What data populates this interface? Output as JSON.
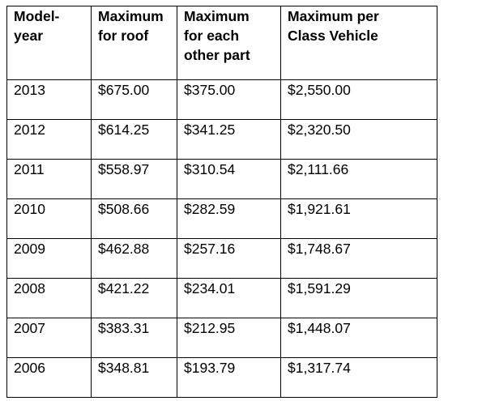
{
  "table": {
    "headers": [
      [
        "Model-",
        "year"
      ],
      [
        "Maximum",
        "for roof"
      ],
      [
        "Maximum",
        "for each",
        "other part"
      ],
      [
        "Maximum per",
        "Class Vehicle"
      ]
    ],
    "rows": [
      [
        "2013",
        "$675.00",
        "$375.00",
        "$2,550.00"
      ],
      [
        "2012",
        "$614.25",
        "$341.25",
        "$2,320.50"
      ],
      [
        "2011",
        "$558.97",
        "$310.54",
        "$2,111.66"
      ],
      [
        "2010",
        "$508.66",
        "$282.59",
        "$1,921.61"
      ],
      [
        "2009",
        "$462.88",
        "$257.16",
        "$1,748.67"
      ],
      [
        "2008",
        "$421.22",
        "$234.01",
        "$1,591.29"
      ],
      [
        "2007",
        "$383.31",
        "$212.95",
        "$1,448.07"
      ],
      [
        "2006",
        "$348.81",
        "$193.79",
        "$1,317.74"
      ]
    ]
  }
}
